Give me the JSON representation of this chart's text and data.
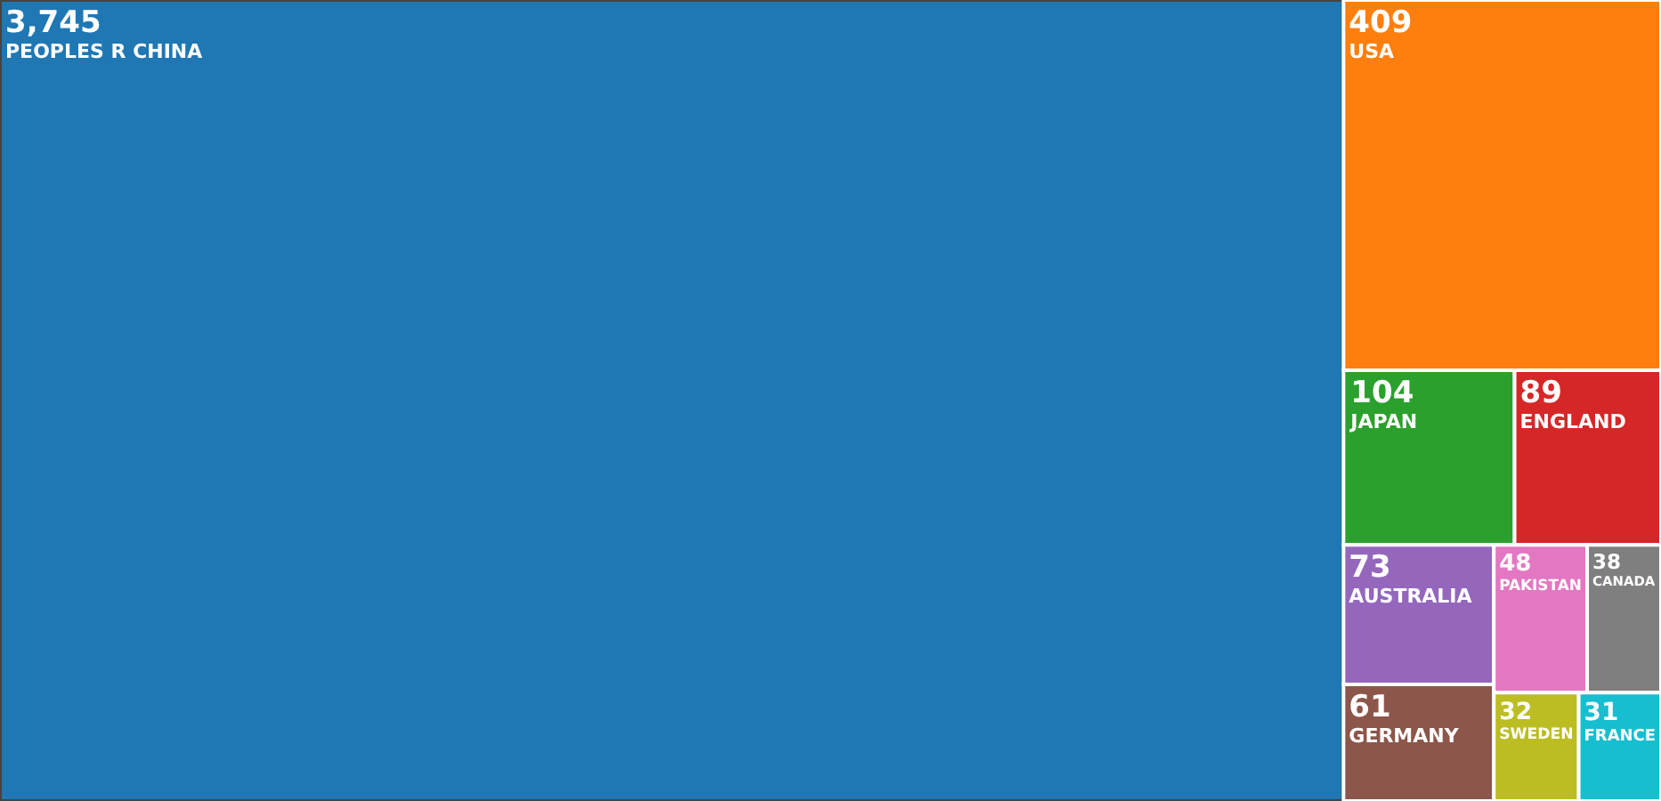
{
  "chart_data": {
    "type": "other",
    "categories": [
      "PEOPLES R CHINA",
      "USA",
      "JAPAN",
      "ENGLAND",
      "AUSTRALIA",
      "GERMANY",
      "PAKISTAN",
      "CANADA",
      "SWEDEN",
      "FRANCE"
    ],
    "values": [
      3745,
      409,
      104,
      89,
      73,
      61,
      48,
      38,
      32,
      31
    ],
    "value_labels": [
      "3,745",
      "409",
      "104",
      "89",
      "73",
      "61",
      "48",
      "38",
      "32",
      "31"
    ],
    "colors": [
      "#1f77b4",
      "#ff7f0e",
      "#2ca02c",
      "#d62728",
      "#9467bd",
      "#8c564b",
      "#e377c2",
      "#7f7f7f",
      "#bcbd22",
      "#17becf"
    ]
  }
}
